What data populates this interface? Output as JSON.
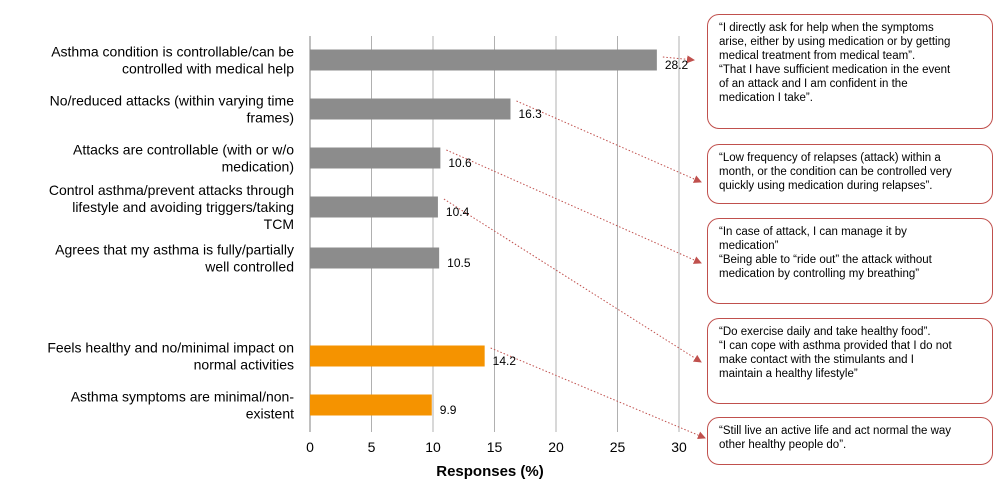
{
  "chart_data": {
    "type": "bar",
    "orientation": "horizontal",
    "xlabel": "Responses (%)",
    "xlim": [
      0,
      30
    ],
    "xticks": [
      0,
      5,
      10,
      15,
      20,
      25,
      30
    ],
    "grid": true,
    "categories": [
      {
        "label": "Asthma condition is controllable/can be controlled with medical help",
        "lines": [
          "Asthma condition is controllable/can be",
          "controlled with medical help"
        ],
        "value": 28.2,
        "value_label": "28.2",
        "group": "control"
      },
      {
        "label": "No/reduced attacks (within varying time frames)",
        "lines": [
          "No/reduced attacks (within varying time",
          "frames)"
        ],
        "value": 16.3,
        "value_label": "16.3",
        "group": "control"
      },
      {
        "label": "Attacks are controllable (with or w/o medication)",
        "lines": [
          "Attacks are controllable (with or w/o",
          "medication)"
        ],
        "value": 10.6,
        "value_label": "10.6",
        "group": "control"
      },
      {
        "label": "Control asthma/prevent attacks through lifestyle and avoiding triggers/taking TCM",
        "lines": [
          "Control asthma/prevent attacks through",
          "lifestyle and avoiding triggers/taking",
          "TCM"
        ],
        "value": 10.4,
        "value_label": "10.4",
        "group": "control"
      },
      {
        "label": "Agrees that my asthma is fully/partially well controlled",
        "lines": [
          "Agrees that my asthma is fully/partially",
          "well controlled"
        ],
        "value": 10.5,
        "value_label": "10.5",
        "group": "control"
      },
      {
        "label": "Feels healthy and no/minimal impact on normal activities",
        "lines": [
          "Feels healthy and no/minimal impact on",
          "normal activities"
        ],
        "value": 14.2,
        "value_label": "14.2",
        "group": "health"
      },
      {
        "label": "Asthma symptoms are minimal/non-existent",
        "lines": [
          "Asthma symptoms are minimal/non-",
          "existent"
        ],
        "value": 9.9,
        "value_label": "9.9",
        "group": "health"
      }
    ],
    "colors": {
      "control": "#8c8c8c",
      "health": "#f59300",
      "grid": "#b0b0b0",
      "axis": "#808080",
      "connector": "#c0504d"
    },
    "annotations": [
      {
        "text": "“I directly ask for help when the symptoms\narise, either by using medication or by getting\nmedical treatment from medical team”.\n“That I have sufficient medication in the event\nof an attack and I am confident in the\nmedication I take”.",
        "links_to": 0
      },
      {
        "text": "“Low frequency of relapses (attack) within a\nmonth, or the condition can be controlled very\nquickly using medication during relapses”.",
        "links_to": 1
      },
      {
        "text": "“In case of attack, I can manage it by\nmedication”\n“Being able to “ride out” the attack without\nmedication by controlling my breathing”",
        "links_to": 2
      },
      {
        "text": "“Do exercise daily and take healthy food”.\n“I can cope with asthma provided that I do not\nmake contact with the stimulants and I\nmaintain a healthy lifestyle”",
        "links_to": 3
      },
      {
        "text": "“Still live an active life and act normal the way\nother healthy people do”.",
        "links_to": 5
      }
    ]
  }
}
